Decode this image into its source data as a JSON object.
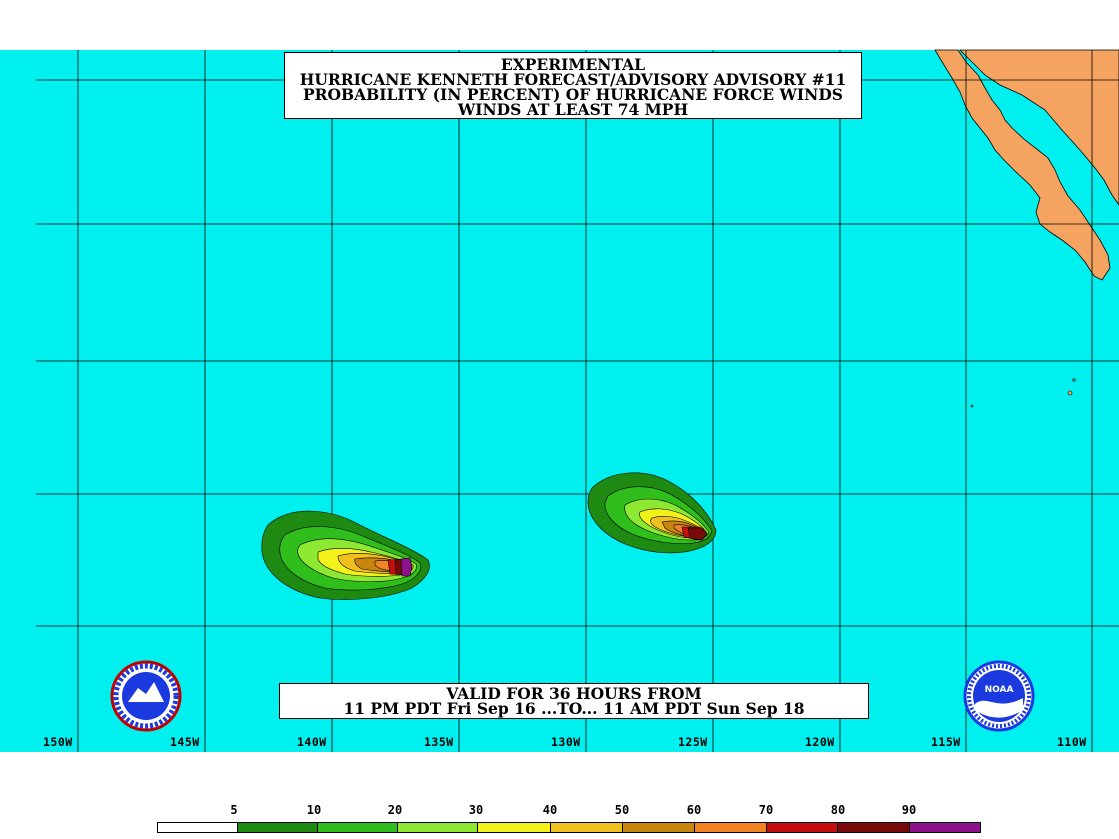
{
  "title": {
    "line1": "EXPERIMENTAL",
    "line2": "HURRICANE KENNETH FORECAST/ADVISORY ADVISORY #11",
    "line3": "PROBABILITY (IN PERCENT) OF HURRICANE FORCE WINDS",
    "line4": "WINDS AT LEAST 74 MPH"
  },
  "valid": {
    "line1": "VALID FOR 36 HOURS FROM",
    "line2": "11 PM PDT Fri Sep 16 ...TO... 11 AM PDT Sun Sep 18"
  },
  "longitudes": [
    "150W",
    "145W",
    "140W",
    "135W",
    "130W",
    "125W",
    "120W",
    "115W",
    "110W"
  ],
  "legend": {
    "labels": [
      "5",
      "10",
      "20",
      "30",
      "40",
      "50",
      "60",
      "70",
      "80",
      "90"
    ],
    "colors": [
      "#ffffff",
      "#1f8a12",
      "#2fbe1c",
      "#8ce830",
      "#f2f21a",
      "#f0c01e",
      "#c8860e",
      "#f28322",
      "#c40e0e",
      "#7a0a0a",
      "#8c128c"
    ]
  },
  "colors": {
    "ocean": "#00f0f0",
    "land": "#f4a460",
    "grid": "#000000"
  },
  "logos": {
    "left": "nws-logo",
    "right": "noaa-logo"
  }
}
